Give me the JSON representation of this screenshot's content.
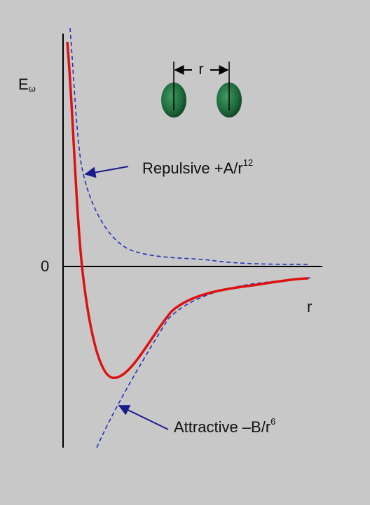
{
  "axis": {
    "y_label": "E",
    "y_label_sub": "ω",
    "origin_label": "0",
    "x_label": "r"
  },
  "atoms": {
    "separation_label": "r"
  },
  "annotations": [
    {
      "text": "Repulsive  +A/r",
      "superscript": "12"
    },
    {
      "text": "Attractive –B/r",
      "superscript": "6"
    }
  ]
}
